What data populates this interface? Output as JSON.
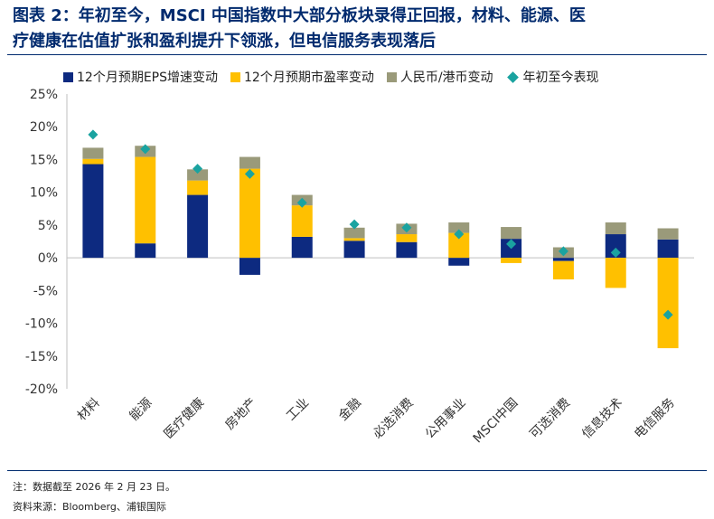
{
  "title": {
    "line1": "图表 2：年初至今，MSCI 中国指数中大部分板块录得正回报，材料、能源、医",
    "line2": "疗健康在估值扩张和盈利提升下领涨，但电信服务表现落后"
  },
  "footer": {
    "note": "注：数据截至 2026 年 2 月 23 日。",
    "source": "资料来源：Bloomberg、浦银国际"
  },
  "colors": {
    "eps": "#0d2a80",
    "pe": "#ffc000",
    "fx": "#9a9a7a",
    "ytd": "#1aa3a0",
    "title": "#002a6e"
  },
  "chart_data": {
    "type": "bar",
    "stacked": true,
    "title": "",
    "xlabel": "",
    "ylabel": "",
    "ylim": [
      -20,
      25
    ],
    "yticks": [
      25,
      20,
      15,
      10,
      5,
      0,
      -5,
      -10,
      -15,
      -20
    ],
    "ytick_labels": [
      "25%",
      "20%",
      "15%",
      "10%",
      "5%",
      "0%",
      "-5%",
      "-10%",
      "-15%",
      "-20%"
    ],
    "categories": [
      "材料",
      "能源",
      "医疗健康",
      "房地产",
      "工业",
      "金融",
      "必选消费",
      "公用事业",
      "MSCI中国",
      "可选消费",
      "信息技术",
      "电信服务"
    ],
    "series": [
      {
        "name": "12个月预期EPS增速变动",
        "kind": "bar",
        "values": [
          14.3,
          2.2,
          9.6,
          -2.6,
          3.2,
          2.6,
          2.4,
          -1.2,
          2.9,
          -0.5,
          3.6,
          2.8
        ]
      },
      {
        "name": "12个月预期市盈率变动",
        "kind": "bar",
        "values": [
          0.8,
          13.2,
          2.2,
          13.6,
          4.8,
          0.4,
          1.2,
          3.8,
          -0.8,
          -2.8,
          -4.6,
          -13.8
        ]
      },
      {
        "name": "人民币/港币变动",
        "kind": "bar",
        "values": [
          1.7,
          1.7,
          1.7,
          1.8,
          1.6,
          1.6,
          1.6,
          1.6,
          1.8,
          1.6,
          1.8,
          1.7
        ]
      },
      {
        "name": "年初至今表现",
        "kind": "marker",
        "values": [
          18.8,
          16.6,
          13.6,
          12.8,
          8.4,
          5.1,
          4.6,
          3.6,
          2.1,
          1.0,
          0.8,
          -8.7
        ]
      }
    ],
    "legend_position": "top"
  }
}
